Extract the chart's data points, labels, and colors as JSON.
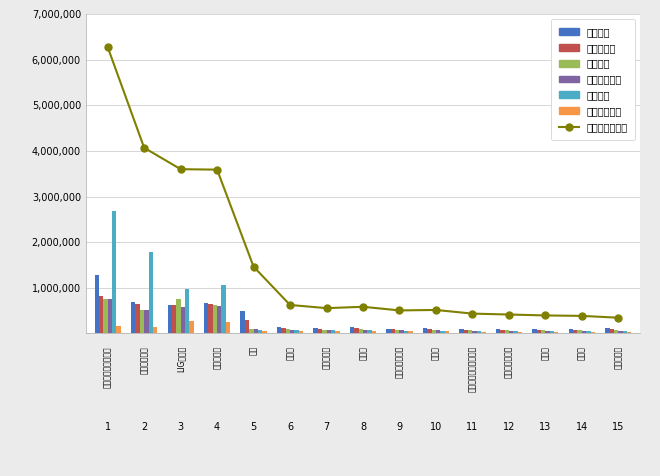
{
  "categories": [
    "한화에어로스페이스",
    "한국항공우주",
    "LIG넥스원",
    "한화시스템",
    "빅텍",
    "퍼스텍",
    "쌌트렭아이",
    "아스트",
    "아이쓰리시스템",
    "휴니드",
    "쾄코아에어로스페이스",
    "비유테크놀리지",
    "휴센텍",
    "제노코",
    "하이즈항공"
  ],
  "x_labels": [
    "1",
    "2",
    "3",
    "4",
    "5",
    "6",
    "7",
    "8",
    "9",
    "10",
    "11",
    "12",
    "13",
    "14",
    "15"
  ],
  "participation": [
    1280000,
    680000,
    620000,
    660000,
    490000,
    130000,
    110000,
    130000,
    100000,
    110000,
    100000,
    100000,
    90000,
    100000,
    110000
  ],
  "media": [
    820000,
    650000,
    610000,
    650000,
    300000,
    120000,
    100000,
    110000,
    90000,
    90000,
    80000,
    80000,
    80000,
    80000,
    90000
  ],
  "communication": [
    760000,
    520000,
    740000,
    610000,
    100000,
    90000,
    80000,
    90000,
    70000,
    70000,
    60000,
    60000,
    60000,
    60000,
    60000
  ],
  "community": [
    750000,
    510000,
    570000,
    590000,
    90000,
    80000,
    70000,
    80000,
    60000,
    60000,
    50000,
    50000,
    50000,
    50000,
    50000
  ],
  "market": [
    2680000,
    1780000,
    960000,
    1060000,
    70000,
    60000,
    60000,
    60000,
    50000,
    50000,
    40000,
    40000,
    40000,
    40000,
    40000
  ],
  "social": [
    160000,
    130000,
    260000,
    250000,
    50000,
    40000,
    40000,
    40000,
    40000,
    40000,
    30000,
    30000,
    30000,
    30000,
    30000
  ],
  "brand": [
    6280000,
    4070000,
    3600000,
    3590000,
    1460000,
    620000,
    550000,
    580000,
    500000,
    510000,
    430000,
    410000,
    390000,
    380000,
    340000
  ],
  "bar_colors": [
    "#4472C4",
    "#C0504D",
    "#9BBB59",
    "#8064A2",
    "#4BACC6",
    "#F79646"
  ],
  "line_color": "#808000",
  "ylim": [
    0,
    7000000
  ],
  "yticks": [
    0,
    1000000,
    2000000,
    3000000,
    4000000,
    5000000,
    6000000,
    7000000
  ],
  "legend_labels": [
    "참여지수",
    "미디어지수",
    "소통지수",
    "커뮤니티지수",
    "시장지수",
    "사회공헌지수",
    "브랜드평판지수"
  ],
  "bg_color": "#EBEBEB",
  "plot_bg_color": "#FFFFFF"
}
